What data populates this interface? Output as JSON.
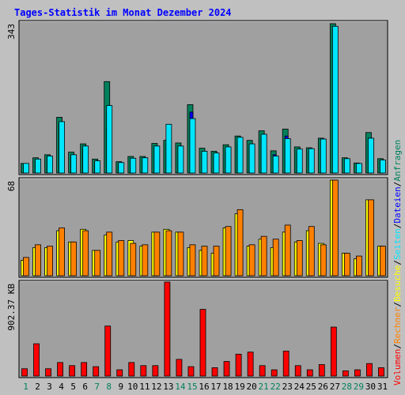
{
  "title": "Tages-Statistik im Monat Dezember 2024",
  "colors": {
    "background": "#c0c0c0",
    "plot_bg": "#a0a0a0",
    "anfragen": "#00805c",
    "dateien": "#0000ff",
    "seiten": "#00e6ff",
    "besuche": "#ffff00",
    "rechner": "#ff8000",
    "volumen": "#ff0000",
    "weekday_label": "#000000",
    "weekend_label": "#00805c",
    "title": "#0000ff"
  },
  "legend": {
    "items": [
      {
        "label": "Volumen",
        "color": "#ff0000"
      },
      {
        "label": "Rechner",
        "color": "#ff8000"
      },
      {
        "label": "Besuche",
        "color": "#ffff00"
      },
      {
        "label": "Seiten",
        "color": "#00e6ff"
      },
      {
        "label": "Dateien",
        "color": "#0000ff"
      },
      {
        "label": "Anfragen",
        "color": "#00805c"
      }
    ],
    "separator": "/"
  },
  "chart_data": [
    {
      "type": "bar",
      "ymax_label": "343",
      "ylim": [
        0,
        343
      ],
      "categories": [
        "1",
        "2",
        "3",
        "4",
        "5",
        "6",
        "7",
        "8",
        "9",
        "10",
        "11",
        "12",
        "13",
        "14",
        "15",
        "16",
        "17",
        "18",
        "19",
        "20",
        "21",
        "22",
        "23",
        "24",
        "25",
        "26",
        "27",
        "28",
        "29",
        "30",
        "31"
      ],
      "weekend_days": [
        1,
        7,
        8,
        14,
        15,
        21,
        22,
        28,
        29
      ],
      "series": [
        {
          "name": "Anfragen",
          "color": "#00805c",
          "values": [
            22,
            35,
            42,
            128,
            48,
            67,
            32,
            210,
            26,
            38,
            38,
            68,
            75,
            69,
            157,
            57,
            50,
            65,
            85,
            75,
            97,
            51,
            101,
            60,
            58,
            80,
            343,
            35,
            23,
            93,
            33
          ]
        },
        {
          "name": "Dateien",
          "color": "#0000ff",
          "values": [
            18,
            28,
            38,
            115,
            40,
            55,
            25,
            105,
            20,
            30,
            33,
            55,
            65,
            58,
            140,
            45,
            40,
            52,
            70,
            65,
            80,
            42,
            85,
            50,
            50,
            70,
            330,
            28,
            20,
            80,
            28
          ]
        },
        {
          "name": "Seiten",
          "color": "#00e6ff",
          "values": [
            22,
            32,
            39,
            118,
            42,
            62,
            28,
            155,
            24,
            34,
            35,
            62,
            112,
            62,
            125,
            50,
            46,
            60,
            82,
            67,
            89,
            39,
            79,
            55,
            56,
            78,
            337,
            33,
            22,
            80,
            30
          ]
        }
      ]
    },
    {
      "type": "bar",
      "ymax_label": "68",
      "ylim": [
        0,
        68
      ],
      "categories": [
        "1",
        "2",
        "3",
        "4",
        "5",
        "6",
        "7",
        "8",
        "9",
        "10",
        "11",
        "12",
        "13",
        "14",
        "15",
        "16",
        "17",
        "18",
        "19",
        "20",
        "21",
        "22",
        "23",
        "24",
        "25",
        "26",
        "27",
        "28",
        "29",
        "30",
        "31"
      ],
      "series": [
        {
          "name": "Besuche",
          "color": "#ffff00",
          "values": [
            11,
            20,
            20,
            32,
            24,
            33,
            18,
            29,
            24,
            25,
            21,
            31,
            33,
            31,
            20,
            18,
            16,
            34,
            44,
            21,
            26,
            20,
            31,
            24,
            32,
            23,
            68,
            16,
            12,
            54,
            21
          ]
        },
        {
          "name": "Rechner",
          "color": "#ff8000",
          "values": [
            13,
            22,
            21,
            34,
            24,
            32,
            18,
            31,
            25,
            23,
            22,
            31,
            32,
            31,
            22,
            21,
            21,
            35,
            47,
            22,
            28,
            26,
            36,
            25,
            35,
            22,
            68,
            16,
            14,
            54,
            21
          ]
        }
      ]
    },
    {
      "type": "bar",
      "ymax_label": "902.37 KB",
      "ylim": [
        0,
        902.37
      ],
      "categories": [
        "1",
        "2",
        "3",
        "4",
        "5",
        "6",
        "7",
        "8",
        "9",
        "10",
        "11",
        "12",
        "13",
        "14",
        "15",
        "16",
        "17",
        "18",
        "19",
        "20",
        "21",
        "22",
        "23",
        "24",
        "25",
        "26",
        "27",
        "28",
        "29",
        "30",
        "31"
      ],
      "series": [
        {
          "name": "Volumen",
          "color": "#ff0000",
          "values": [
            70,
            310,
            70,
            130,
            100,
            130,
            90,
            480,
            60,
            130,
            100,
            100,
            902.37,
            160,
            90,
            640,
            80,
            140,
            210,
            230,
            100,
            60,
            240,
            100,
            60,
            110,
            470,
            50,
            60,
            120,
            80
          ]
        }
      ]
    }
  ]
}
